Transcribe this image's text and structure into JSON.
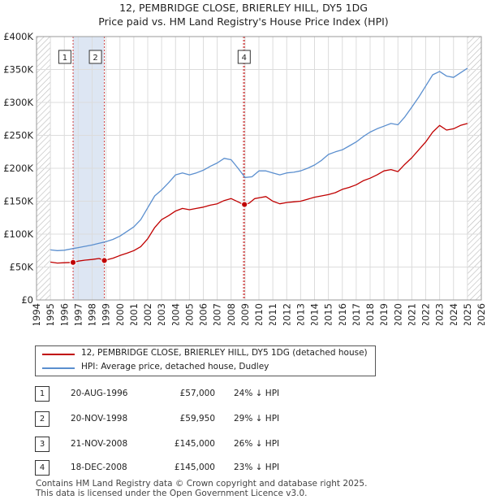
{
  "chart_data": {
    "type": "line",
    "title": "12, PEMBRIDGE CLOSE, BRIERLEY HILL, DY5 1DG",
    "subtitle": "Price paid vs. HM Land Registry's House Price Index (HPI)",
    "xlabel": "",
    "ylabel": "",
    "xlim": [
      1994.0,
      2026.0
    ],
    "ylim": [
      0,
      400000
    ],
    "y_ticks": [
      0,
      50000,
      100000,
      150000,
      200000,
      250000,
      300000,
      350000,
      400000
    ],
    "y_tick_labels": [
      "£0",
      "£50K",
      "£100K",
      "£150K",
      "£200K",
      "£250K",
      "£300K",
      "£350K",
      "£400K"
    ],
    "x_ticks": [
      1994,
      1995,
      1996,
      1997,
      1998,
      1999,
      2000,
      2001,
      2002,
      2003,
      2004,
      2005,
      2006,
      2007,
      2008,
      2009,
      2010,
      2011,
      2012,
      2013,
      2014,
      2015,
      2016,
      2017,
      2018,
      2019,
      2020,
      2021,
      2022,
      2023,
      2024,
      2025,
      2026
    ],
    "x_tick_labels": [
      "1994",
      "1995",
      "1996",
      "1997",
      "1998",
      "1999",
      "2000",
      "2001",
      "2002",
      "2003",
      "2004",
      "2005",
      "2006",
      "2007",
      "2008",
      "2009",
      "2010",
      "2011",
      "2012",
      "2013",
      "2014",
      "2015",
      "2016",
      "2017",
      "2018",
      "2019",
      "2020",
      "2021",
      "2022",
      "2023",
      "2024",
      "2025",
      "2026"
    ],
    "grid": true,
    "data_start": 1995.0,
    "data_end": 2025.0,
    "shaded_period": [
      1996.63,
      1998.88
    ],
    "series": [
      {
        "name": "12, PEMBRIDGE CLOSE, BRIERLEY HILL, DY5 1DG (detached house)",
        "color": "#c00000",
        "x": [
          1995.0,
          1995.5,
          1996.0,
          1996.63,
          1997.0,
          1997.5,
          1998.0,
          1998.5,
          1998.88,
          1999.5,
          2000.0,
          2000.5,
          2001.0,
          2001.5,
          2002.0,
          2002.5,
          2003.0,
          2003.5,
          2004.0,
          2004.5,
          2005.0,
          2005.5,
          2006.0,
          2006.5,
          2007.0,
          2007.5,
          2008.0,
          2008.5,
          2008.89,
          2008.96,
          2009.3,
          2009.7,
          2010.0,
          2010.5,
          2011.0,
          2011.5,
          2012.0,
          2012.5,
          2013.0,
          2013.5,
          2014.0,
          2014.5,
          2015.0,
          2015.5,
          2016.0,
          2016.5,
          2017.0,
          2017.5,
          2018.0,
          2018.5,
          2019.0,
          2019.5,
          2020.0,
          2020.5,
          2021.0,
          2021.5,
          2022.0,
          2022.5,
          2023.0,
          2023.5,
          2024.0,
          2024.5,
          2025.0
        ],
        "values": [
          57500,
          56000,
          56500,
          57000,
          59000,
          60500,
          61500,
          63000,
          59950,
          63500,
          67500,
          71000,
          75000,
          81000,
          93000,
          110000,
          122000,
          128000,
          135000,
          139000,
          137000,
          139000,
          141000,
          144000,
          146000,
          151000,
          154000,
          149000,
          145000,
          145000,
          147000,
          154000,
          155000,
          157000,
          150000,
          146000,
          148000,
          149000,
          150000,
          153000,
          156000,
          158000,
          160000,
          163000,
          168000,
          171000,
          175000,
          181000,
          185000,
          190000,
          196000,
          198000,
          195000,
          206000,
          216000,
          228000,
          240000,
          255000,
          265000,
          258000,
          260000,
          265000,
          268000
        ]
      },
      {
        "name": "HPI: Average price, detached house, Dudley",
        "color": "#5b8fcf",
        "x": [
          1995.0,
          1995.5,
          1996.0,
          1996.5,
          1997.0,
          1997.5,
          1998.0,
          1998.5,
          1999.0,
          1999.5,
          2000.0,
          2000.5,
          2001.0,
          2001.5,
          2002.0,
          2002.5,
          2003.0,
          2003.5,
          2004.0,
          2004.5,
          2005.0,
          2005.5,
          2006.0,
          2006.5,
          2007.0,
          2007.5,
          2008.0,
          2008.5,
          2009.0,
          2009.5,
          2010.0,
          2010.5,
          2011.0,
          2011.5,
          2012.0,
          2012.5,
          2013.0,
          2013.5,
          2014.0,
          2014.5,
          2015.0,
          2015.5,
          2016.0,
          2016.5,
          2017.0,
          2017.5,
          2018.0,
          2018.5,
          2019.0,
          2019.5,
          2020.0,
          2020.5,
          2021.0,
          2021.5,
          2022.0,
          2022.5,
          2023.0,
          2023.5,
          2024.0,
          2024.5,
          2025.0
        ],
        "values": [
          76000,
          75000,
          75500,
          77500,
          79500,
          81500,
          83500,
          86000,
          88500,
          92000,
          97000,
          104000,
          111000,
          122000,
          140000,
          158000,
          167000,
          178000,
          190000,
          193000,
          190000,
          193000,
          197000,
          203000,
          208000,
          215000,
          213000,
          200000,
          186000,
          187000,
          196000,
          196000,
          193000,
          190000,
          193000,
          194000,
          196000,
          200000,
          205000,
          212000,
          221000,
          225000,
          228000,
          234000,
          240000,
          248000,
          255000,
          260000,
          264000,
          268000,
          266000,
          278000,
          293000,
          308000,
          325000,
          342000,
          347000,
          340000,
          338000,
          345000,
          352000
        ]
      }
    ],
    "transactions": [
      {
        "id": "1",
        "x": 1996.63,
        "value": 57000,
        "date": "20-AUG-1996",
        "price": "£57,000",
        "hpi": "24% ↓ HPI",
        "dot": true
      },
      {
        "id": "2",
        "x": 1998.88,
        "value": 59950,
        "date": "20-NOV-1998",
        "price": "£59,950",
        "hpi": "29% ↓ HPI",
        "dot": true
      },
      {
        "id": "3",
        "x": 2008.89,
        "value": 145000,
        "date": "21-NOV-2008",
        "price": "£145,000",
        "hpi": "26% ↓ HPI",
        "dot": false
      },
      {
        "id": "4",
        "x": 2008.96,
        "value": 145000,
        "date": "18-DEC-2008",
        "price": "£145,000",
        "hpi": "23% ↓ HPI",
        "dot": true
      }
    ],
    "chart_labels": [
      {
        "id": "1",
        "x": 1995.6
      },
      {
        "id": "2",
        "x": 1997.8
      },
      {
        "id": "4",
        "x": 2008.5
      }
    ]
  },
  "footer": {
    "line1": "Contains HM Land Registry data © Crown copyright and database right 2025.",
    "line2": "This data is licensed under the Open Government Licence v3.0."
  }
}
